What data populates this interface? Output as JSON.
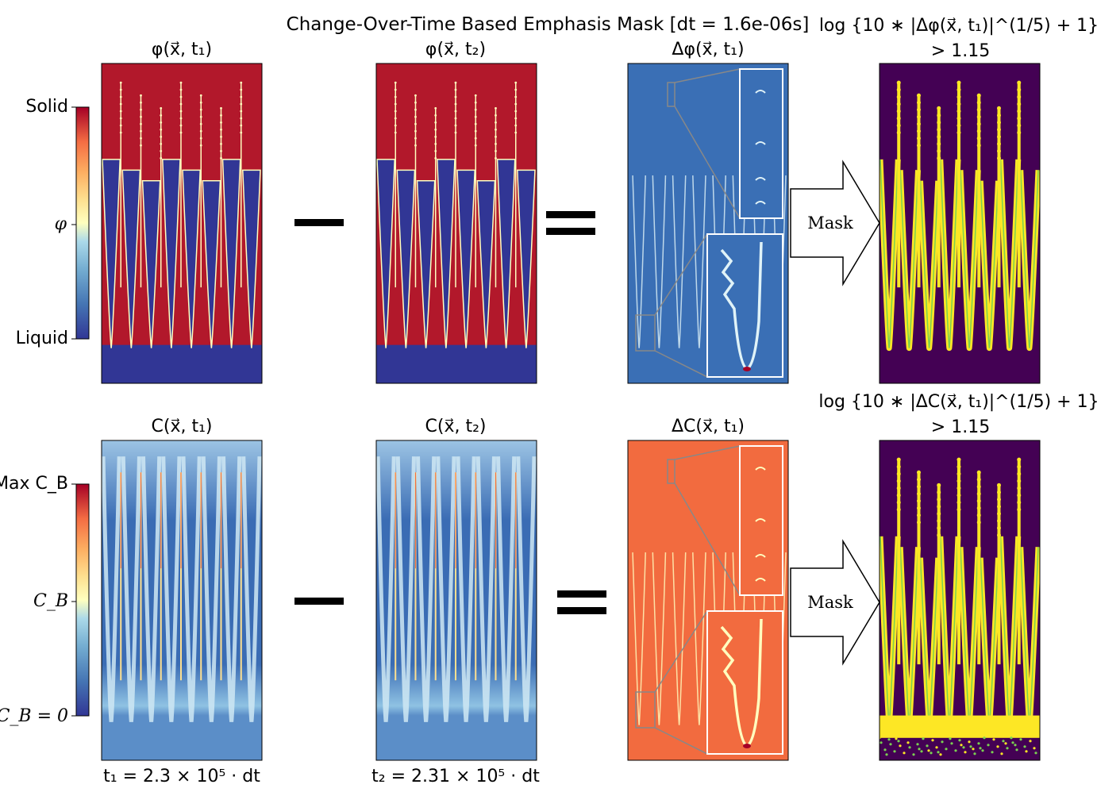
{
  "title": "Change-Over-Time Based Emphasis Mask [dt = 1.6e-06s]",
  "rows": [
    {
      "field": "phi",
      "panels": [
        {
          "id": "phi_t1",
          "title": "φ(x⃗, t₁)",
          "colormap": "RdYlBu_r"
        },
        {
          "id": "phi_t2",
          "title": "φ(x⃗, t₂)",
          "colormap": "RdYlBu_r"
        },
        {
          "id": "dphi",
          "title": "Δφ(x⃗, t₁)",
          "colormap": "RdYlBu_r",
          "has_zoom_insets": true
        },
        {
          "id": "mask_phi",
          "title_line1": "log {10 ∗ |Δφ(x⃗, t₁)|^(1/5) + 1}",
          "title_line2": "> 1.15",
          "colormap": "viridis"
        }
      ],
      "colorbar": {
        "top_label": "Solid",
        "mid_label": "φ",
        "bottom_label": "Liquid"
      },
      "operators": {
        "minus": "−",
        "equals": "=",
        "arrow_label": "Mask"
      }
    },
    {
      "field": "C",
      "panels": [
        {
          "id": "c_t1",
          "title": "C(x⃗, t₁)",
          "colormap": "RdYlBu_r"
        },
        {
          "id": "c_t2",
          "title": "C(x⃗, t₂)",
          "colormap": "RdYlBu_r"
        },
        {
          "id": "dc",
          "title": "ΔC(x⃗, t₁)",
          "colormap": "RdYlBu_r",
          "has_zoom_insets": true
        },
        {
          "id": "mask_c",
          "title_line1": "log {10 ∗ |ΔC(x⃗, t₁)|^(1/5) + 1}",
          "title_line2": "> 1.15",
          "colormap": "viridis"
        }
      ],
      "colorbar": {
        "top_label": "Max C_B",
        "mid_label": "C_B",
        "bottom_label": "C_B = 0"
      },
      "operators": {
        "minus": "−",
        "equals": "=",
        "arrow_label": "Mask"
      }
    }
  ],
  "time_labels": {
    "t1": "t₁ = 2.3 × 10⁵ · dt",
    "t2": "t₂ = 2.31 × 10⁵ · dt"
  },
  "colors": {
    "solid_red": "#b2182b",
    "liquid_blue": "#313695",
    "delta_phi_bg": "#3a6fb5",
    "delta_c_bg": "#f26b3f",
    "mask_bg": "#440154",
    "mask_fg": "#fde725",
    "mask_mid": "#7ad151"
  }
}
